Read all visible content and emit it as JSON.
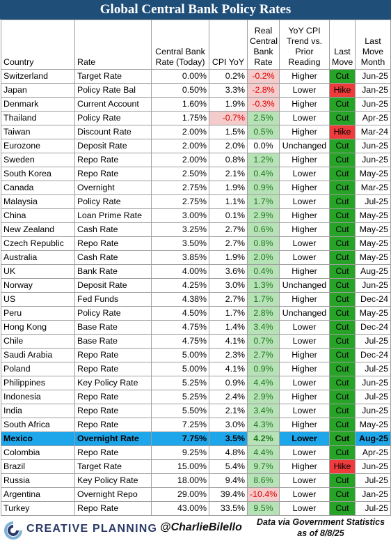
{
  "title": "Global Central Bank Policy Rates",
  "headers": {
    "country": "Country",
    "rate": "Rate",
    "cb_rate": "Central Bank Rate (Today)",
    "cpi": "CPI YoY",
    "real": "Real Central Bank Rate",
    "trend": "YoY CPI Trend vs. Prior Reading",
    "last_move": "Last Move",
    "last_move_month": "Last Move Month"
  },
  "rows": [
    {
      "country": "Switzerland",
      "rate": "Target Rate",
      "cb": "0.00%",
      "cpi": "0.2%",
      "real": "-0.2%",
      "trend": "Higher",
      "move": "Cut",
      "month": "Jun-25"
    },
    {
      "country": "Japan",
      "rate": "Policy Rate Bal",
      "cb": "0.50%",
      "cpi": "3.3%",
      "real": "-2.8%",
      "trend": "Lower",
      "move": "Hike",
      "month": "Jan-25"
    },
    {
      "country": "Denmark",
      "rate": "Current Account",
      "cb": "1.60%",
      "cpi": "1.9%",
      "real": "-0.3%",
      "trend": "Higher",
      "move": "Cut",
      "month": "Jun-25"
    },
    {
      "country": "Thailand",
      "rate": "Policy Rate",
      "cb": "1.75%",
      "cpi": "-0.7%",
      "real": "2.5%",
      "trend": "Lower",
      "move": "Cut",
      "month": "Apr-25"
    },
    {
      "country": "Taiwan",
      "rate": "Discount Rate",
      "cb": "2.00%",
      "cpi": "1.5%",
      "real": "0.5%",
      "trend": "Higher",
      "move": "Hike",
      "month": "Mar-24"
    },
    {
      "country": "Eurozone",
      "rate": "Deposit Rate",
      "cb": "2.00%",
      "cpi": "2.0%",
      "real": "0.0%",
      "trend": "Unchanged",
      "move": "Cut",
      "month": "Jun-25"
    },
    {
      "country": "Sweden",
      "rate": "Repo Rate",
      "cb": "2.00%",
      "cpi": "0.8%",
      "real": "1.2%",
      "trend": "Higher",
      "move": "Cut",
      "month": "Jun-25"
    },
    {
      "country": "South Korea",
      "rate": "Repo Rate",
      "cb": "2.50%",
      "cpi": "2.1%",
      "real": "0.4%",
      "trend": "Lower",
      "move": "Cut",
      "month": "May-25"
    },
    {
      "country": "Canada",
      "rate": "Overnight",
      "cb": "2.75%",
      "cpi": "1.9%",
      "real": "0.9%",
      "trend": "Higher",
      "move": "Cut",
      "month": "Mar-25"
    },
    {
      "country": "Malaysia",
      "rate": "Policy Rate",
      "cb": "2.75%",
      "cpi": "1.1%",
      "real": "1.7%",
      "trend": "Lower",
      "move": "Cut",
      "month": "Jul-25"
    },
    {
      "country": "China",
      "rate": "Loan Prime Rate",
      "cb": "3.00%",
      "cpi": "0.1%",
      "real": "2.9%",
      "trend": "Higher",
      "move": "Cut",
      "month": "May-25"
    },
    {
      "country": "New Zealand",
      "rate": "Cash Rate",
      "cb": "3.25%",
      "cpi": "2.7%",
      "real": "0.6%",
      "trend": "Higher",
      "move": "Cut",
      "month": "May-25"
    },
    {
      "country": "Czech Republic",
      "rate": "Repo Rate",
      "cb": "3.50%",
      "cpi": "2.7%",
      "real": "0.8%",
      "trend": "Lower",
      "move": "Cut",
      "month": "May-25"
    },
    {
      "country": "Australia",
      "rate": "Cash Rate",
      "cb": "3.85%",
      "cpi": "1.9%",
      "real": "2.0%",
      "trend": "Lower",
      "move": "Cut",
      "month": "May-25"
    },
    {
      "country": "UK",
      "rate": "Bank Rate",
      "cb": "4.00%",
      "cpi": "3.6%",
      "real": "0.4%",
      "trend": "Higher",
      "move": "Cut",
      "month": "Aug-25"
    },
    {
      "country": "Norway",
      "rate": "Deposit Rate",
      "cb": "4.25%",
      "cpi": "3.0%",
      "real": "1.3%",
      "trend": "Unchanged",
      "move": "Cut",
      "month": "Jun-25"
    },
    {
      "country": "US",
      "rate": "Fed Funds",
      "cb": "4.38%",
      "cpi": "2.7%",
      "real": "1.7%",
      "trend": "Higher",
      "move": "Cut",
      "month": "Dec-24"
    },
    {
      "country": "Peru",
      "rate": "Policy Rate",
      "cb": "4.50%",
      "cpi": "1.7%",
      "real": "2.8%",
      "trend": "Unchanged",
      "move": "Cut",
      "month": "May-25"
    },
    {
      "country": "Hong Kong",
      "rate": "Base Rate",
      "cb": "4.75%",
      "cpi": "1.4%",
      "real": "3.4%",
      "trend": "Lower",
      "move": "Cut",
      "month": "Dec-24"
    },
    {
      "country": "Chile",
      "rate": "Base Rate",
      "cb": "4.75%",
      "cpi": "4.1%",
      "real": "0.7%",
      "trend": "Lower",
      "move": "Cut",
      "month": "Jul-25"
    },
    {
      "country": "Saudi Arabia",
      "rate": "Repo Rate",
      "cb": "5.00%",
      "cpi": "2.3%",
      "real": "2.7%",
      "trend": "Higher",
      "move": "Cut",
      "month": "Dec-24"
    },
    {
      "country": "Poland",
      "rate": "Repo Rate",
      "cb": "5.00%",
      "cpi": "4.1%",
      "real": "0.9%",
      "trend": "Higher",
      "move": "Cut",
      "month": "Jul-25"
    },
    {
      "country": "Philippines",
      "rate": "Key Policy Rate",
      "cb": "5.25%",
      "cpi": "0.9%",
      "real": "4.4%",
      "trend": "Lower",
      "move": "Cut",
      "month": "Jun-25"
    },
    {
      "country": "Indonesia",
      "rate": "Repo Rate",
      "cb": "5.25%",
      "cpi": "2.4%",
      "real": "2.9%",
      "trend": "Higher",
      "move": "Cut",
      "month": "Jul-25"
    },
    {
      "country": "India",
      "rate": "Repo Rate",
      "cb": "5.50%",
      "cpi": "2.1%",
      "real": "3.4%",
      "trend": "Lower",
      "move": "Cut",
      "month": "Jun-25"
    },
    {
      "country": "South Africa",
      "rate": "Repo Rate",
      "cb": "7.25%",
      "cpi": "3.0%",
      "real": "4.3%",
      "trend": "Higher",
      "move": "Cut",
      "month": "May-25"
    },
    {
      "country": "Mexico",
      "rate": "Overnight Rate",
      "cb": "7.75%",
      "cpi": "3.5%",
      "real": "4.2%",
      "trend": "Lower",
      "move": "Cut",
      "month": "Aug-25",
      "highlight": true
    },
    {
      "country": "Colombia",
      "rate": "Repo Rate",
      "cb": "9.25%",
      "cpi": "4.8%",
      "real": "4.4%",
      "trend": "Lower",
      "move": "Cut",
      "month": "Apr-25"
    },
    {
      "country": "Brazil",
      "rate": "Target Rate",
      "cb": "15.00%",
      "cpi": "5.4%",
      "real": "9.7%",
      "trend": "Higher",
      "move": "Hike",
      "month": "Jun-25"
    },
    {
      "country": "Russia",
      "rate": "Key Policy Rate",
      "cb": "18.00%",
      "cpi": "9.4%",
      "real": "8.6%",
      "trend": "Lower",
      "move": "Cut",
      "month": "Jul-25"
    },
    {
      "country": "Argentina",
      "rate": "Overnight Repo",
      "cb": "29.00%",
      "cpi": "39.4%",
      "real": "-10.4%",
      "trend": "Lower",
      "move": "Cut",
      "month": "Jan-25"
    },
    {
      "country": "Turkey",
      "rate": "Repo Rate",
      "cb": "43.00%",
      "cpi": "33.5%",
      "real": "9.5%",
      "trend": "Lower",
      "move": "Cut",
      "month": "Jul-25"
    }
  ],
  "footer": {
    "brand": "CREATIVE PLANNING",
    "handle": "@CharlieBilello",
    "source_line1": "Data via Government Statistics",
    "source_line2": "as of 8/8/25"
  },
  "colors": {
    "title_bg": "#1f4e79",
    "cut": "#27a327",
    "hike": "#ee3b3b",
    "positive_real_bg": "#b7e1b7",
    "negative_real_bg": "#f4cccc",
    "highlight_row": "#1ea6ea"
  },
  "icons": {
    "logo": "creative-planning-chevron-logo"
  }
}
